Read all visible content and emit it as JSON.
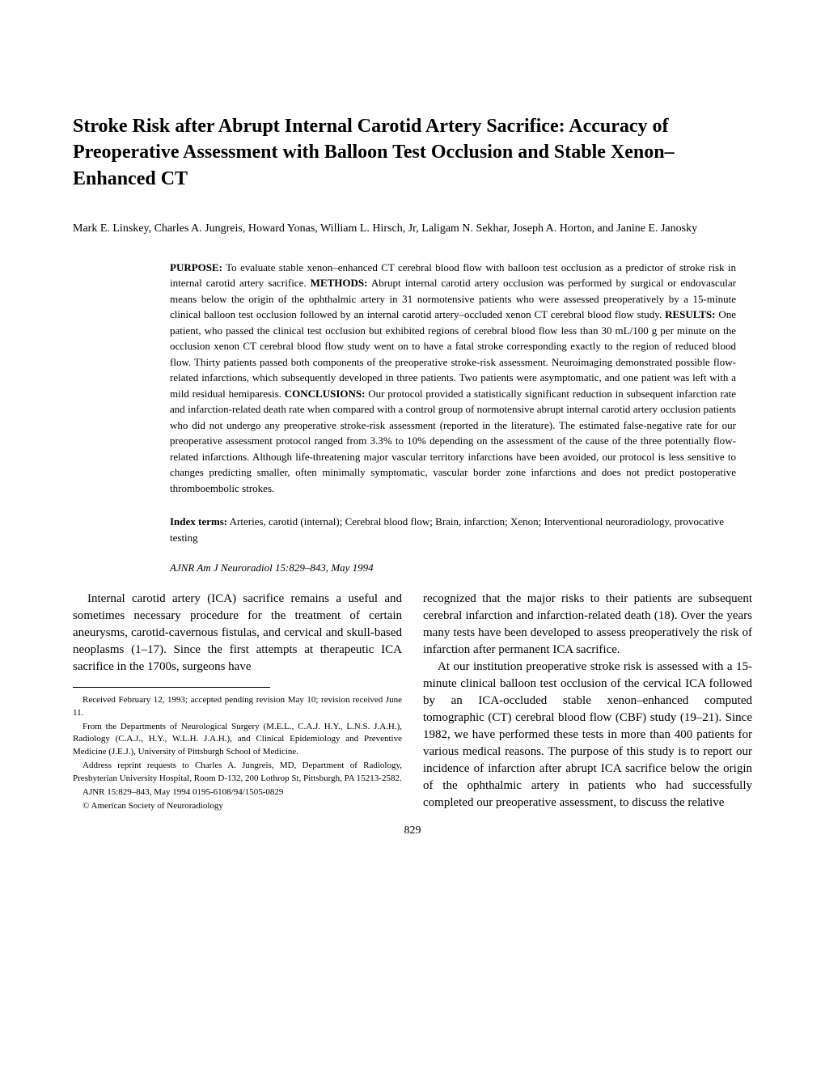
{
  "title": "Stroke Risk after Abrupt Internal Carotid Artery Sacrifice: Accuracy of Preoperative Assessment with Balloon Test Occlusion and Stable Xenon–Enhanced CT",
  "authors": "Mark E. Linskey, Charles A. Jungreis, Howard Yonas, William L. Hirsch, Jr, Laligam N. Sekhar, Joseph A. Horton, and Janine E. Janosky",
  "abstract": {
    "purpose_label": "PURPOSE:",
    "purpose_text": " To evaluate stable xenon–enhanced CT cerebral blood flow with balloon test occlusion as a predictor of stroke risk in internal carotid artery sacrifice. ",
    "methods_label": "METHODS:",
    "methods_text": " Abrupt internal carotid artery occlusion was performed by surgical or endovascular means below the origin of the ophthalmic artery in 31 normotensive patients who were assessed preoperatively by a 15-minute clinical balloon test occlusion followed by an internal carotid artery–occluded xenon CT cerebral blood flow study. ",
    "results_label": "RESULTS:",
    "results_text": " One patient, who passed the clinical test occlusion but exhibited regions of cerebral blood flow less than 30 mL/100 g per minute on the occlusion xenon CT cerebral blood flow study went on to have a fatal stroke corresponding exactly to the region of reduced blood flow. Thirty patients passed both components of the preoperative stroke-risk assessment. Neuroimaging demonstrated possible flow-related infarctions, which subsequently developed in three patients. Two patients were asymptomatic, and one patient was left with a mild residual hemiparesis. ",
    "conclusions_label": "CONCLUSIONS:",
    "conclusions_text": " Our protocol provided a statistically significant reduction in subsequent infarction rate and infarction-related death rate when compared with a control group of normotensive abrupt internal carotid artery occlusion patients who did not undergo any preoperative stroke-risk assessment (reported in the literature). The estimated false-negative rate for our preoperative assessment protocol ranged from 3.3% to 10% depending on the assessment of the cause of the three potentially flow-related infarctions. Although life-threatening major vascular territory infarctions have been avoided, our protocol is less sensitive to changes predicting smaller, often minimally symptomatic, vascular border zone infarctions and does not predict postoperative thromboembolic strokes."
  },
  "index_terms": {
    "label": "Index terms:",
    "text": " Arteries, carotid (internal); Cerebral blood flow; Brain, infarction; Xenon; Interventional neuroradiology, provocative testing"
  },
  "citation": "AJNR Am J Neuroradiol 15:829–843, May 1994",
  "body": {
    "left_para": "Internal carotid artery (ICA) sacrifice remains a useful and sometimes necessary procedure for the treatment of certain aneurysms, carotid-cavernous fistulas, and cervical and skull-based neoplasms (1–17). Since the first attempts at therapeutic ICA sacrifice in the 1700s, surgeons have",
    "right_para1": "recognized that the major risks to their patients are subsequent cerebral infarction and infarction-related death (18). Over the years many tests have been developed to assess preoperatively the risk of infarction after permanent ICA sacrifice.",
    "right_para2": "At our institution preoperative stroke risk is assessed with a 15-minute clinical balloon test occlusion of the cervical ICA followed by an ICA-occluded stable xenon–enhanced computed tomographic (CT) cerebral blood flow (CBF) study (19–21). Since 1982, we have performed these tests in more than 400 patients for various medical reasons. The purpose of this study is to report our incidence of infarction after abrupt ICA sacrifice below the origin of the ophthalmic artery in patients who had successfully completed our preoperative assessment, to discuss the relative"
  },
  "footnotes": {
    "received": "Received February 12, 1993; accepted pending revision May 10; revision received June 11.",
    "from": "From the Departments of Neurological Surgery (M.E.L., C.A.J. H.Y., L.N.S. J.A.H.), Radiology (C.A.J., H.Y., W.L.H. J.A.H.), and Clinical Epidemiology and Preventive Medicine (J.E.J.), University of Pittsburgh School of Medicine.",
    "address": "Address reprint requests to Charles A. Jungreis, MD, Department of Radiology, Presbyterian University Hospital, Room D-132, 200 Lothrop St, Pittsburgh, PA 15213-2582.",
    "ajnr": "AJNR 15:829–843, May 1994 0195-6108/94/1505-0829",
    "copyright": "© American Society of Neuroradiology"
  },
  "page_number": "829"
}
